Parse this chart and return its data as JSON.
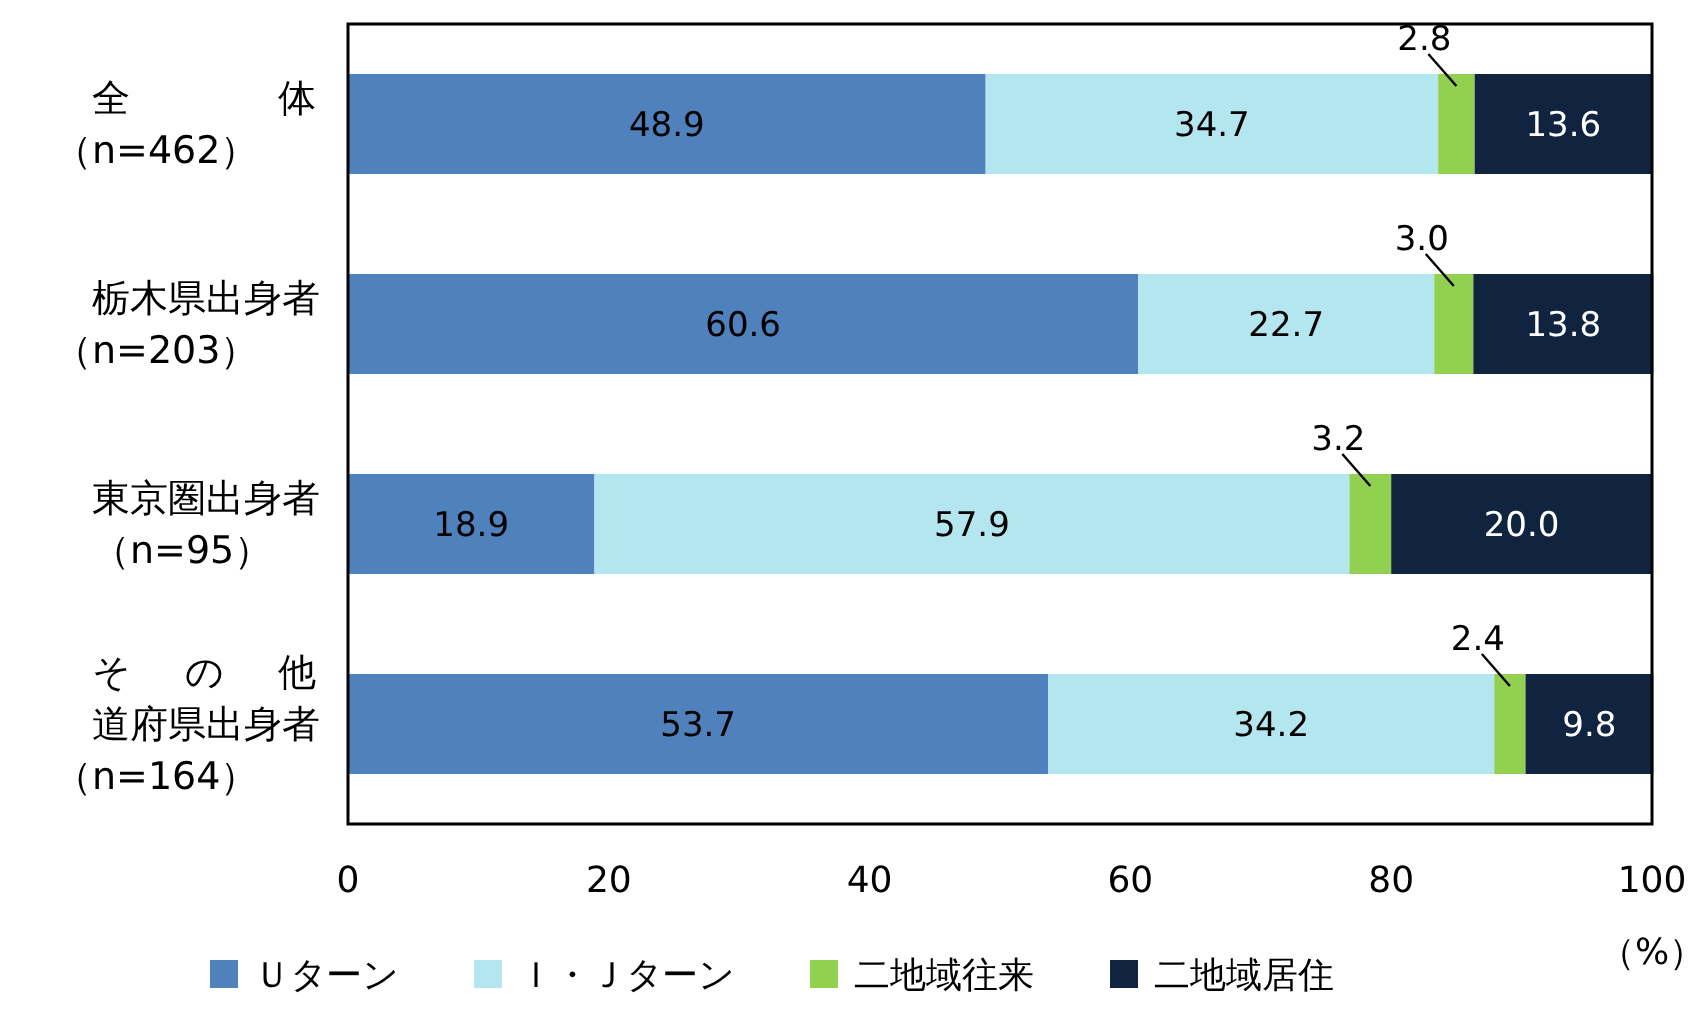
{
  "chart_data": {
    "type": "bar",
    "orientation": "horizontal",
    "stacked": true,
    "categories": [
      "全体（n=462）",
      "栃木県出身者（n=203）",
      "東京圏出身者（n=95）",
      "その他道府県出身者（n=164）"
    ],
    "series": [
      {
        "name": "Ｕターン",
        "color": "#4f81bd",
        "values": [
          48.9,
          60.6,
          18.9,
          53.7
        ],
        "value_labels": [
          "48.9",
          "60.6",
          "18.9",
          "53.7"
        ]
      },
      {
        "name": "Ｉ・Ｊターン",
        "color": "#b4e6f0",
        "values": [
          34.7,
          22.7,
          57.9,
          34.2
        ],
        "value_labels": [
          "34.7",
          "22.7",
          "57.9",
          "34.2"
        ]
      },
      {
        "name": "二地域往来",
        "color": "#92d050",
        "values": [
          2.8,
          3.0,
          3.2,
          2.4
        ],
        "value_labels": [
          "2.8",
          "3.0",
          "3.2",
          "2.4"
        ]
      },
      {
        "name": "二地域居住",
        "color": "#10243f",
        "values": [
          13.6,
          13.8,
          20.0,
          9.8
        ],
        "value_labels": [
          "13.6",
          "13.8",
          "20.0",
          "9.8"
        ]
      }
    ],
    "xlim": [
      0,
      100
    ],
    "xticks": [
      0,
      20,
      40,
      60,
      80,
      100
    ],
    "xlabel": "（%）",
    "legend": "bottom",
    "grid": false
  }
}
